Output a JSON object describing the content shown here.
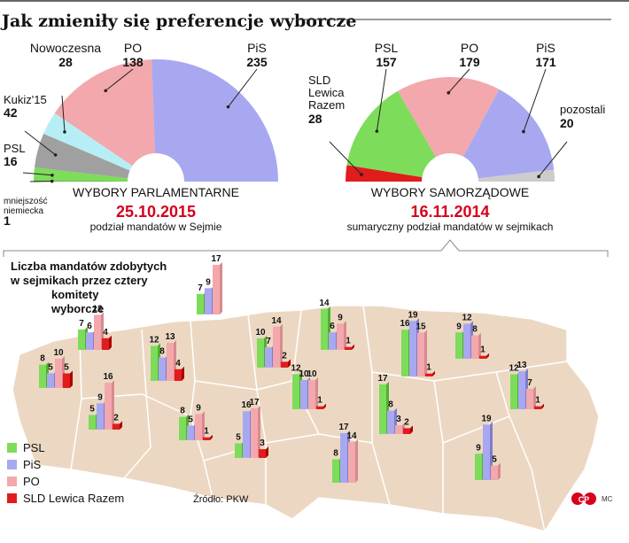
{
  "title": "Jak zmieniły się preferencje wyborcze",
  "colors": {
    "PSL": "#7ddc5a",
    "PiS": "#a8a8f0",
    "PO": "#f2a8ac",
    "SLD": "#e01c1c",
    "Nowoczesna": "#b7eef5",
    "Kukiz": "#a0a0a0",
    "pozostali": "#cccccc",
    "map": "#ecd8c2",
    "red": "#d6001c"
  },
  "chart_data": [
    {
      "type": "pie",
      "title": "WYBORY PARLAMENTARNE",
      "date": "25.10.2015",
      "subtitle": "podział mandatów w Sejmie",
      "slices": [
        {
          "name": "mniejszość niemiecka",
          "value": 1,
          "color": "#3a9a3a",
          "label": "mniejszość\nniemiecka",
          "value_label": "1"
        },
        {
          "name": "PSL",
          "value": 16,
          "color": "#7ddc5a",
          "label": "PSL",
          "value_label": "16"
        },
        {
          "name": "Kukiz'15",
          "value": 42,
          "color": "#a0a0a0",
          "label": "Kukiz'15",
          "value_label": "42"
        },
        {
          "name": "Nowoczesna",
          "value": 28,
          "color": "#b7eef5",
          "label": "Nowoczesna",
          "value_label": "28"
        },
        {
          "name": "PO",
          "value": 138,
          "color": "#f2a8ac",
          "label": "PO",
          "value_label": "138"
        },
        {
          "name": "PiS",
          "value": 235,
          "color": "#a8a8f0",
          "label": "PiS",
          "value_label": "235"
        }
      ]
    },
    {
      "type": "pie",
      "title": "WYBORY SAMORZĄDOWE",
      "date": "16.11.2014",
      "subtitle": "sumaryczny podział mandatów w sejmikach",
      "slices": [
        {
          "name": "SLD Lewica Razem",
          "value": 28,
          "color": "#e01c1c",
          "label": "SLD\nLewica\nRazem",
          "value_label": "28"
        },
        {
          "name": "PSL",
          "value": 157,
          "color": "#7ddc5a",
          "label": "PSL",
          "value_label": "157"
        },
        {
          "name": "PO",
          "value": 179,
          "color": "#f2a8ac",
          "label": "PO",
          "value_label": "179"
        },
        {
          "name": "PiS",
          "value": 171,
          "color": "#a8a8f0",
          "label": "PiS",
          "value_label": "171"
        },
        {
          "name": "pozostali",
          "value": 20,
          "color": "#cccccc",
          "label": "pozostali",
          "value_label": "20"
        }
      ]
    },
    {
      "type": "bar",
      "title": "Liczba mandatów zdobytych w sejmikach przez cztery komitety wyborcze",
      "series_names": [
        "PSL",
        "PiS",
        "PO",
        "SLD Lewica Razem"
      ],
      "regions": [
        {
          "values": [
            7,
            6,
            12,
            4
          ]
        },
        {
          "values": [
            8,
            5,
            10,
            5
          ]
        },
        {
          "values": [
            5,
            9,
            16,
            2
          ]
        },
        {
          "values": [
            12,
            8,
            13,
            4
          ]
        },
        {
          "values": [
            7,
            9,
            17,
            null
          ]
        },
        {
          "values": [
            8,
            5,
            9,
            1
          ]
        },
        {
          "values": [
            5,
            16,
            17,
            3
          ]
        },
        {
          "values": [
            10,
            7,
            14,
            2
          ]
        },
        {
          "values": [
            12,
            10,
            10,
            1
          ]
        },
        {
          "values": [
            14,
            6,
            9,
            1
          ]
        },
        {
          "values": [
            8,
            17,
            14,
            null
          ]
        },
        {
          "values": [
            16,
            19,
            15,
            1
          ]
        },
        {
          "values": [
            17,
            8,
            3,
            2
          ]
        },
        {
          "values": [
            9,
            12,
            8,
            1
          ]
        },
        {
          "values": [
            12,
            13,
            7,
            1
          ]
        },
        {
          "values": [
            9,
            19,
            5,
            null
          ]
        }
      ]
    }
  ],
  "legend": [
    {
      "name": "PSL",
      "color": "#7ddc5a"
    },
    {
      "name": "PiS",
      "color": "#a8a8f0"
    },
    {
      "name": "PO",
      "color": "#f2a8ac"
    },
    {
      "name": "SLD Lewica Razem",
      "color": "#e01c1c"
    }
  ],
  "map_title_lines": [
    "Liczba mandatów zdobytych",
    "w sejmikach przez cztery",
    "komitety",
    "wyborcze"
  ],
  "source": "Źródło: PKW",
  "logo": "CP",
  "author": "MC"
}
